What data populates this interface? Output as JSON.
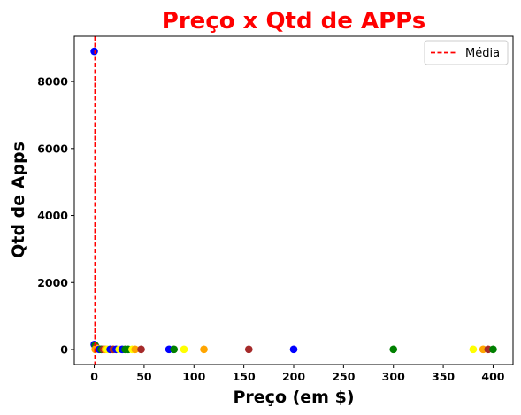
{
  "chart_data": {
    "type": "scatter",
    "title": "Preço x Qtd de APPs",
    "title_color": "#ff0000",
    "xlabel": "Preço (em $)",
    "ylabel": "Qtd de Apps",
    "xlim": [
      -20,
      420
    ],
    "ylim": [
      -450,
      9350
    ],
    "x_ticks": [
      0,
      50,
      100,
      150,
      200,
      250,
      300,
      350,
      400
    ],
    "y_ticks": [
      0,
      2000,
      4000,
      6000,
      8000
    ],
    "grid": false,
    "legend": {
      "position": "top-right",
      "entries": [
        {
          "label": "Média",
          "color": "#ff0000",
          "style": "dashed-line"
        }
      ]
    },
    "mean_line": {
      "x": 0.8,
      "color": "#ff0000"
    },
    "points": [
      {
        "x": 0,
        "y": 8900,
        "color": "#0000ff"
      },
      {
        "x": 0,
        "y": 150,
        "color": "#0000ff"
      },
      {
        "x": 1,
        "y": 120,
        "color": "#008000"
      },
      {
        "x": 2,
        "y": 60,
        "color": "#a52a2a"
      },
      {
        "x": 3,
        "y": 30,
        "color": "#ffa500"
      },
      {
        "x": 4,
        "y": 20,
        "color": "#ffff00"
      },
      {
        "x": 1,
        "y": 5,
        "color": "#ffa500"
      },
      {
        "x": 5,
        "y": 5,
        "color": "#0000ff"
      },
      {
        "x": 7,
        "y": 5,
        "color": "#008000"
      },
      {
        "x": 9,
        "y": 5,
        "color": "#a52a2a"
      },
      {
        "x": 11,
        "y": 5,
        "color": "#ffa500"
      },
      {
        "x": 13,
        "y": 5,
        "color": "#ffff00"
      },
      {
        "x": 16,
        "y": 5,
        "color": "#0000ff"
      },
      {
        "x": 19,
        "y": 5,
        "color": "#a52a2a"
      },
      {
        "x": 22,
        "y": 5,
        "color": "#0000ff"
      },
      {
        "x": 25,
        "y": 5,
        "color": "#ffff00"
      },
      {
        "x": 28,
        "y": 5,
        "color": "#0000ff"
      },
      {
        "x": 31,
        "y": 5,
        "color": "#008000"
      },
      {
        "x": 34,
        "y": 5,
        "color": "#008000"
      },
      {
        "x": 38,
        "y": 5,
        "color": "#ffff00"
      },
      {
        "x": 41,
        "y": 5,
        "color": "#ffa500"
      },
      {
        "x": 47,
        "y": 5,
        "color": "#a52a2a"
      },
      {
        "x": 75,
        "y": 5,
        "color": "#0000ff"
      },
      {
        "x": 80,
        "y": 5,
        "color": "#008000"
      },
      {
        "x": 90,
        "y": 5,
        "color": "#ffff00"
      },
      {
        "x": 110,
        "y": 5,
        "color": "#ffa500"
      },
      {
        "x": 155,
        "y": 5,
        "color": "#a52a2a"
      },
      {
        "x": 200,
        "y": 5,
        "color": "#0000ff"
      },
      {
        "x": 300,
        "y": 5,
        "color": "#008000"
      },
      {
        "x": 380,
        "y": 5,
        "color": "#ffff00"
      },
      {
        "x": 390,
        "y": 5,
        "color": "#ffa500"
      },
      {
        "x": 395,
        "y": 5,
        "color": "#a52a2a"
      },
      {
        "x": 400,
        "y": 5,
        "color": "#008000"
      }
    ]
  }
}
